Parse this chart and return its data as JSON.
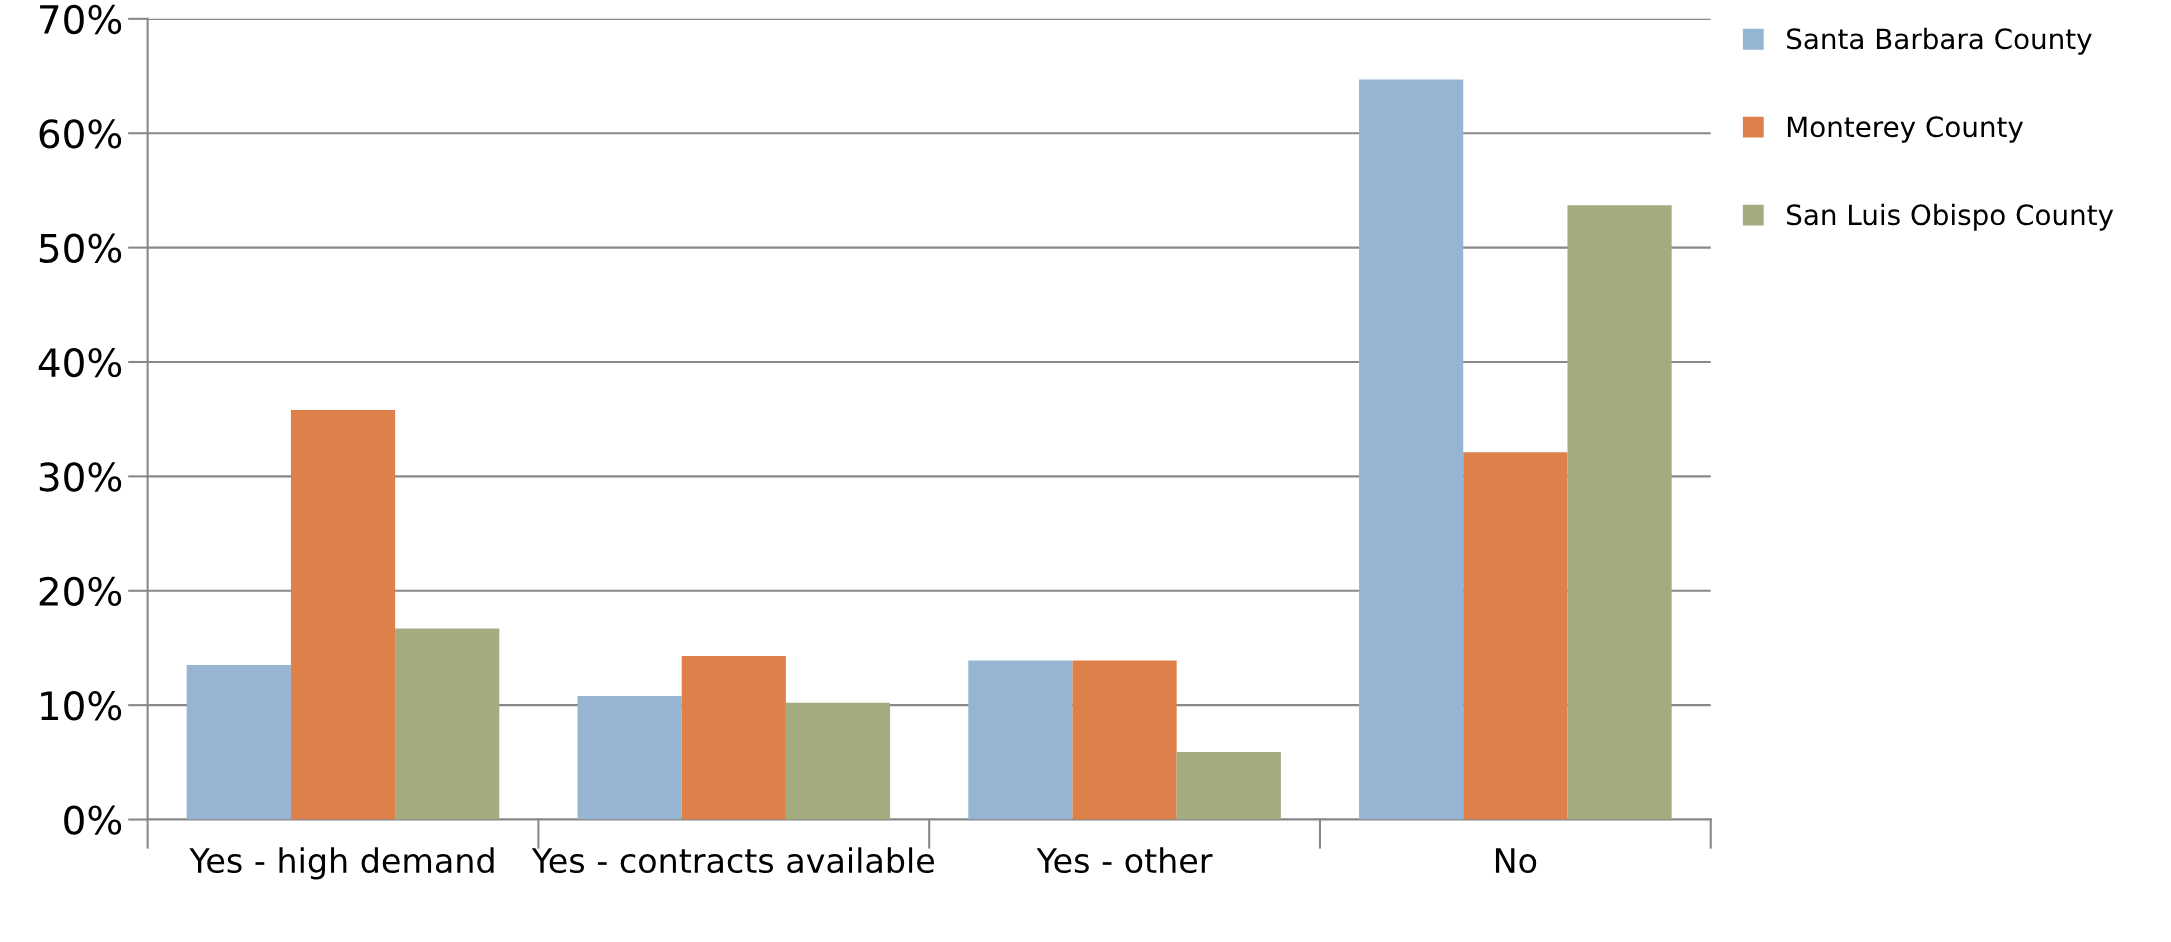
{
  "chart_data": {
    "type": "bar",
    "categories": [
      "Yes - high demand",
      "Yes - contracts available",
      "Yes - other",
      "No"
    ],
    "series": [
      {
        "name": "Santa Barbara County",
        "color": "#95b5d3",
        "values": [
          13.5,
          10.8,
          13.9,
          64.7
        ]
      },
      {
        "name": "Monterey County",
        "color": "#dd804a",
        "values": [
          35.8,
          14.3,
          13.9,
          32.1
        ]
      },
      {
        "name": "San Luis Obispo County",
        "color": "#a4ab7f",
        "values": [
          16.7,
          10.2,
          5.9,
          53.7
        ]
      }
    ],
    "ylim": [
      0,
      70
    ],
    "yticks": [
      {
        "value": 0,
        "label": "0%"
      },
      {
        "value": 10,
        "label": "10%"
      },
      {
        "value": 20,
        "label": "20%"
      },
      {
        "value": 30,
        "label": "30%"
      },
      {
        "value": 40,
        "label": "40%"
      },
      {
        "value": 50,
        "label": "50%"
      },
      {
        "value": 60,
        "label": "60%"
      },
      {
        "value": 70,
        "label": "70%"
      }
    ],
    "grid": "y",
    "legend": "top right"
  }
}
